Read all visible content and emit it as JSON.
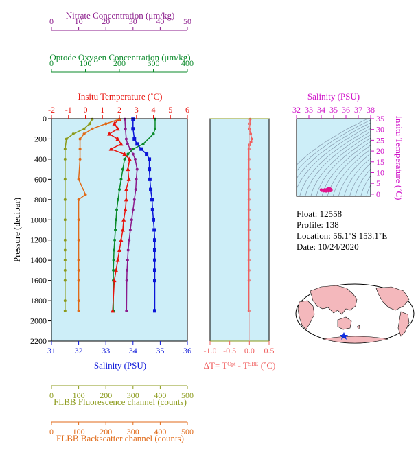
{
  "colors": {
    "nitrate": "#8b1a8b",
    "oxygen": "#0a8a2a",
    "temperature": "#e8120c",
    "salinity": "#0a14d8",
    "fluorescence": "#8b9a1a",
    "backscatter": "#e06a18",
    "deltaT": "#f06060",
    "plotbg": "#cdeef8",
    "ts_axis": "#d010c8",
    "ts_curve": "#7a8aa0",
    "ts_points": "#e0148c"
  },
  "info": {
    "float": "Float:  12558",
    "profile": "Profile:  138",
    "location": "Location:  56.1˚S  153.1˚E",
    "date": "Date:  10/24/2020"
  },
  "chart_data": [
    {
      "type": "line",
      "name": "main-profile",
      "ylabel": "Pressure (decibar)",
      "ylim": [
        2200,
        0
      ],
      "yticks": [
        0,
        200,
        400,
        600,
        800,
        1000,
        1200,
        1400,
        1600,
        1800,
        2000,
        2200
      ],
      "axes": {
        "nitrate": {
          "label": "Nitrate Concentration (μm/kg)",
          "range": [
            0,
            50
          ],
          "ticks": [
            0,
            10,
            20,
            30,
            40,
            50
          ]
        },
        "oxygen": {
          "label": "Optode Oxygen Concentration (μm/kg)",
          "range": [
            0,
            400
          ],
          "ticks": [
            0,
            100,
            200,
            300,
            400
          ]
        },
        "temperature": {
          "label": "Insitu Temperature (˚C)",
          "range": [
            -2,
            6
          ],
          "ticks": [
            -2,
            -1,
            0,
            1,
            2,
            3,
            4,
            5,
            6
          ]
        },
        "salinity": {
          "label": "Salinity (PSU)",
          "range": [
            31,
            36
          ],
          "ticks": [
            31,
            32,
            33,
            34,
            35,
            36
          ]
        },
        "fluorescence": {
          "label": "FLBB Fluorescence channel (counts)",
          "range": [
            0,
            500
          ],
          "ticks": [
            0,
            100,
            200,
            300,
            400,
            500
          ]
        },
        "backscatter": {
          "label": "FLBB Backscatter channel (counts)",
          "range": [
            0,
            500
          ],
          "ticks": [
            0,
            100,
            200,
            300,
            400,
            500
          ]
        }
      },
      "series": [
        {
          "axis": "nitrate",
          "marker": "circle",
          "x": [
            27,
            27.2,
            27.5,
            28,
            29,
            30,
            30.8,
            31.5,
            31.2,
            31,
            30.5,
            30,
            29.5,
            29,
            28.6,
            28.2,
            28,
            27.8,
            27.7,
            27.6
          ],
          "y": [
            5,
            100,
            200,
            250,
            300,
            350,
            400,
            500,
            600,
            700,
            800,
            900,
            1000,
            1100,
            1200,
            1300,
            1400,
            1500,
            1600,
            1900
          ]
        },
        {
          "axis": "oxygen",
          "marker": "circle",
          "x": [
            305,
            305,
            300,
            270,
            240,
            225,
            215,
            210,
            205,
            200,
            196,
            192,
            190,
            188,
            186,
            184,
            183,
            182,
            182,
            182
          ],
          "y": [
            5,
            100,
            150,
            250,
            300,
            350,
            400,
            500,
            600,
            700,
            800,
            900,
            1000,
            1100,
            1200,
            1300,
            1400,
            1500,
            1600,
            1900
          ]
        },
        {
          "axis": "temperature",
          "marker": "triangle",
          "x": [
            2.0,
            1.7,
            1.9,
            1.4,
            1.9,
            2.1,
            1.5,
            2.3,
            2.6,
            2.5,
            2.55,
            2.4,
            2.4,
            2.35,
            2.25,
            2.2,
            2.1,
            2.0,
            1.9,
            1.8,
            1.7,
            1.6
          ],
          "y": [
            5,
            50,
            100,
            150,
            200,
            250,
            300,
            350,
            400,
            500,
            600,
            700,
            800,
            900,
            1000,
            1100,
            1200,
            1300,
            1400,
            1500,
            1600,
            1900
          ]
        },
        {
          "axis": "salinity",
          "marker": "square",
          "x": [
            34.0,
            34.0,
            34.05,
            34.15,
            34.3,
            34.5,
            34.6,
            34.6,
            34.62,
            34.65,
            34.7,
            34.72,
            34.75,
            34.78,
            34.8,
            34.8,
            34.8,
            34.8,
            34.8,
            34.8
          ],
          "y": [
            5,
            100,
            200,
            250,
            300,
            350,
            400,
            500,
            600,
            700,
            800,
            900,
            1000,
            1100,
            1200,
            1300,
            1400,
            1500,
            1600,
            1900
          ]
        },
        {
          "axis": "fluorescence",
          "marker": "circle",
          "x": [
            150,
            140,
            120,
            80,
            55,
            50,
            50,
            50,
            50,
            50,
            50,
            50,
            50,
            50,
            50,
            50,
            50
          ],
          "y": [
            5,
            50,
            100,
            150,
            200,
            300,
            400,
            600,
            800,
            1000,
            1200,
            1300,
            1400,
            1500,
            1600,
            1800,
            1900
          ]
        },
        {
          "axis": "backscatter",
          "marker": "circle",
          "x": [
            250,
            200,
            150,
            120,
            105,
            105,
            105,
            100,
            125,
            100,
            100,
            100,
            100,
            100,
            100,
            100,
            100
          ],
          "y": [
            5,
            50,
            100,
            150,
            200,
            300,
            400,
            600,
            750,
            800,
            1000,
            1200,
            1400,
            1500,
            1600,
            1800,
            1900
          ]
        }
      ]
    },
    {
      "type": "line",
      "name": "delta-t",
      "xlabel": "ΔT= T",
      "xlabel_sup1": "Opt",
      "xlabel_mid": " - T",
      "xlabel_sup2": "SBE",
      "xlabel_end": " (˚C)",
      "xlim": [
        -1.0,
        0.5
      ],
      "xticks": [
        -1.0,
        -0.5,
        0.0,
        0.5
      ],
      "ylim": [
        2200,
        0
      ],
      "series": [
        {
          "marker": "circle",
          "x": [
            0.02,
            0.01,
            0.0,
            0.03,
            0.06,
            0.04,
            0.0,
            -0.01,
            -0.01,
            -0.01,
            -0.01,
            -0.01,
            -0.01,
            -0.01,
            -0.01,
            -0.01,
            -0.01,
            -0.01,
            -0.01,
            -0.01,
            -0.01,
            -0.01
          ],
          "y": [
            5,
            50,
            100,
            150,
            200,
            230,
            260,
            300,
            400,
            500,
            600,
            700,
            800,
            900,
            1000,
            1100,
            1200,
            1300,
            1400,
            1500,
            1600,
            1900
          ]
        }
      ]
    },
    {
      "type": "scatter",
      "name": "ts-diagram",
      "xlabel": "Salinity (PSU)",
      "ylabel": "Insitu Temperature (˚C)",
      "xlim": [
        32,
        38
      ],
      "ylim": [
        -1,
        35
      ],
      "xticks": [
        32,
        33,
        34,
        35,
        36,
        37,
        38
      ],
      "yticks": [
        0,
        5,
        10,
        15,
        20,
        25,
        30,
        35
      ],
      "series": [
        {
          "x": [
            34.0,
            34.05,
            34.15,
            34.3,
            34.5,
            34.6,
            34.65,
            34.72,
            34.78,
            34.8,
            34.8,
            34.75,
            34.6,
            34.4,
            34.2,
            34.05
          ],
          "y": [
            2.0,
            1.7,
            1.9,
            2.1,
            2.3,
            2.6,
            2.5,
            2.4,
            2.2,
            2.0,
            1.8,
            1.6,
            1.5,
            1.4,
            1.5,
            1.8
          ]
        }
      ]
    }
  ]
}
